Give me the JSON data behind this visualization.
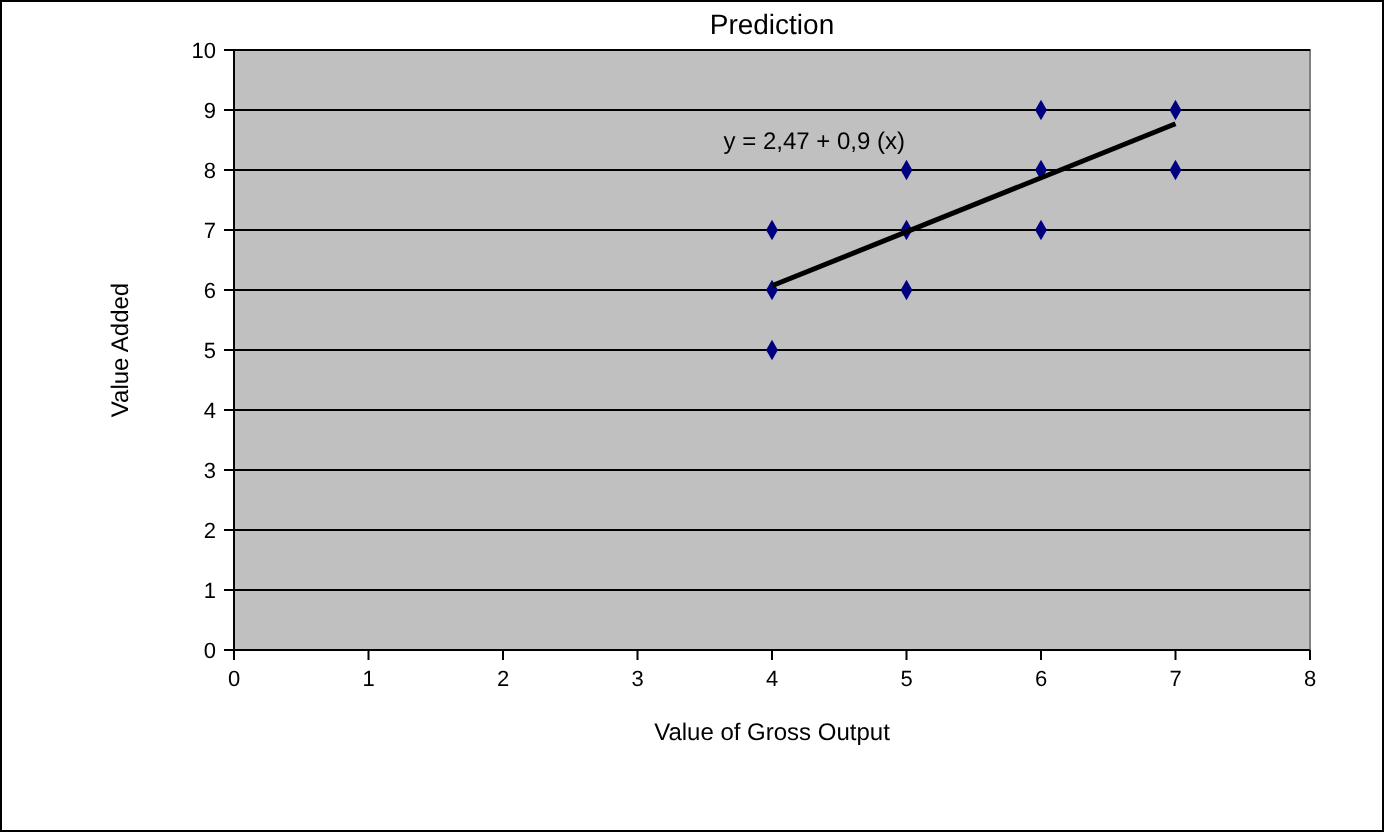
{
  "chart_data": {
    "type": "scatter",
    "title": "Prediction",
    "xlabel": "Value of Gross Output",
    "ylabel": "Value Added",
    "xlim": [
      0,
      8
    ],
    "xticks": [
      0,
      1,
      2,
      3,
      4,
      5,
      6,
      7,
      8
    ],
    "ylim": [
      0,
      10
    ],
    "yticks": [
      0,
      1,
      2,
      3,
      4,
      5,
      6,
      7,
      8,
      9,
      10
    ],
    "grid": "y",
    "marker": "diamond",
    "series": [
      {
        "color": "#000080",
        "x": [
          4,
          4,
          4,
          5,
          5,
          5,
          6,
          6,
          6,
          7,
          7
        ],
        "values": [
          7,
          6,
          5,
          8,
          7,
          6,
          9,
          8,
          7,
          9,
          8
        ]
      },
      {
        "type": "line",
        "color": "#000000",
        "marker": "none",
        "line_style": "solid",
        "x": [
          4,
          7
        ],
        "values": [
          6.07,
          8.77
        ]
      }
    ],
    "annotations": [
      "y = 2,47 + 0,9 (x)"
    ]
  }
}
